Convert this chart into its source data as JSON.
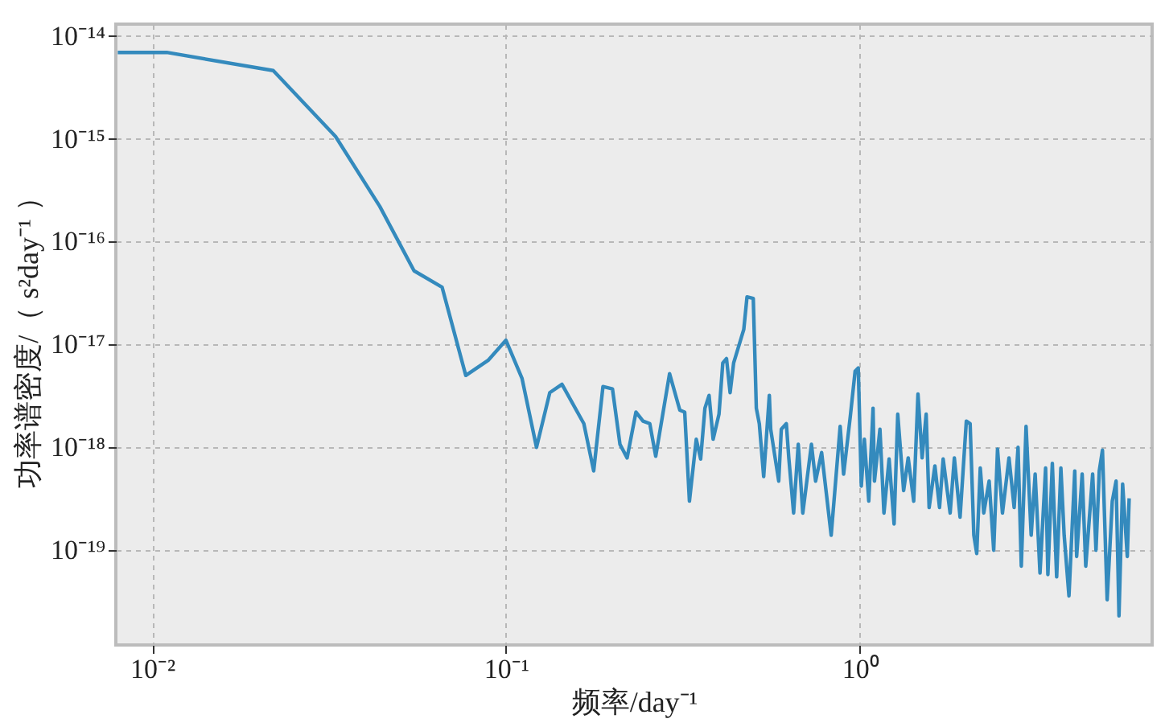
{
  "chart_data": {
    "type": "line",
    "xlabel": "频率/day⁻¹",
    "ylabel": "功率谱密度/（ s²day⁻¹ ）",
    "log": "xy",
    "grid": true,
    "legend": false,
    "line_style": "solid",
    "marker": "none",
    "xlim": [
      0.0079,
      6.7
    ],
    "ylim": [
      1.2e-20,
      1.3e-14
    ],
    "xticks": [
      {
        "value": 0.01,
        "label": "10⁻²"
      },
      {
        "value": 0.1,
        "label": "10⁻¹"
      },
      {
        "value": 1,
        "label": "10⁰"
      }
    ],
    "yticks": [
      {
        "value": 1e-19,
        "label": "10⁻¹⁹"
      },
      {
        "value": 1e-18,
        "label": "10⁻¹⁸"
      },
      {
        "value": 1e-17,
        "label": "10⁻¹⁷"
      },
      {
        "value": 1e-16,
        "label": "10⁻¹⁶"
      },
      {
        "value": 1e-15,
        "label": "10⁻¹⁵"
      },
      {
        "value": 1e-14,
        "label": "10⁻¹⁴"
      }
    ],
    "series": [
      {
        "color": "#348abd",
        "x": [
          0.008,
          0.011,
          0.022,
          0.033,
          0.044,
          0.055,
          0.066,
          0.077,
          0.089,
          0.1,
          0.111,
          0.122,
          0.133,
          0.144,
          0.166,
          0.177,
          0.188,
          0.2,
          0.21,
          0.22,
          0.233,
          0.244,
          0.255,
          0.265,
          0.29,
          0.31,
          0.32,
          0.33,
          0.345,
          0.355,
          0.365,
          0.375,
          0.385,
          0.4,
          0.41,
          0.42,
          0.43,
          0.44,
          0.47,
          0.48,
          0.5,
          0.51,
          0.52,
          0.535,
          0.555,
          0.56,
          0.59,
          0.6,
          0.62,
          0.63,
          0.65,
          0.67,
          0.69,
          0.73,
          0.75,
          0.78,
          0.83,
          0.88,
          0.9,
          0.94,
          0.97,
          0.99,
          1.01,
          1.03,
          1.06,
          1.09,
          1.1,
          1.14,
          1.17,
          1.21,
          1.25,
          1.28,
          1.33,
          1.37,
          1.42,
          1.46,
          1.5,
          1.54,
          1.57,
          1.63,
          1.68,
          1.72,
          1.8,
          1.85,
          1.92,
          2.0,
          2.05,
          2.1,
          2.14,
          2.19,
          2.24,
          2.32,
          2.39,
          2.45,
          2.53,
          2.64,
          2.73,
          2.8,
          2.86,
          2.95,
          3.05,
          3.13,
          3.23,
          3.35,
          3.4,
          3.5,
          3.6,
          3.7,
          3.78,
          3.9,
          4.05,
          4.1,
          4.25,
          4.35,
          4.55,
          4.65,
          4.75,
          4.85,
          5.0,
          5.17,
          5.3,
          5.4,
          5.53,
          5.7,
          5.77
        ],
        "values": [
          6.9e-15,
          6.9e-15,
          4.6e-15,
          1.05e-15,
          2.2e-16,
          5.2e-17,
          3.6e-17,
          5e-18,
          7e-18,
          1.1e-17,
          4.7e-18,
          1e-18,
          3.4e-18,
          4.1e-18,
          1.7e-18,
          5.9e-19,
          3.9e-18,
          3.7e-18,
          1.07e-18,
          7.9e-19,
          2.2e-18,
          1.8e-18,
          1.7e-18,
          8.2e-19,
          5.2e-18,
          2.3e-18,
          2.2e-18,
          3e-19,
          1.2e-18,
          7.7e-19,
          2.4e-18,
          3.2e-18,
          1.2e-18,
          2.1e-18,
          6.6e-18,
          7.3e-18,
          3.4e-18,
          6.6e-18,
          1.4e-17,
          2.9e-17,
          2.8e-17,
          2.4e-18,
          1.7e-18,
          5.2e-19,
          3.2e-18,
          1.5e-18,
          4.7e-19,
          1.5e-18,
          1.7e-18,
          7.9e-19,
          2.3e-19,
          1.07e-18,
          2.3e-19,
          1.07e-18,
          4.7e-19,
          8.9e-19,
          1.4e-19,
          1.6e-18,
          5.5e-19,
          2e-18,
          5.5e-18,
          5.9e-18,
          4.2e-19,
          1.2e-18,
          3e-19,
          2.4e-18,
          4.7e-19,
          1.5e-18,
          2.3e-19,
          7.7e-19,
          1.8e-19,
          2.1e-18,
          3.8e-19,
          7.9e-19,
          3e-19,
          3.3e-18,
          7.9e-19,
          2.1e-18,
          2.6e-19,
          6.6e-19,
          2.6e-19,
          7.7e-19,
          2.3e-19,
          7.9e-19,
          2.1e-19,
          1.8e-18,
          1.7e-18,
          1.4e-19,
          9.3e-20,
          6.3e-19,
          2.3e-19,
          4.7e-19,
          1e-19,
          9.6e-19,
          2.3e-19,
          7.9e-19,
          2.6e-19,
          1e-18,
          7e-20,
          1.6e-18,
          1.4e-19,
          5.5e-19,
          6e-20,
          6.3e-19,
          5.8e-20,
          7e-19,
          5.5e-20,
          6.3e-19,
          1.4e-19,
          3.6e-20,
          5.9e-19,
          8.7e-20,
          5.5e-19,
          7e-20,
          5.5e-19,
          1e-19,
          5.9e-19,
          9.4e-19,
          3.3e-20,
          3e-19,
          4.7e-19,
          2.3e-20,
          4.4e-19,
          8.7e-20,
          3.2e-19
        ]
      }
    ]
  }
}
